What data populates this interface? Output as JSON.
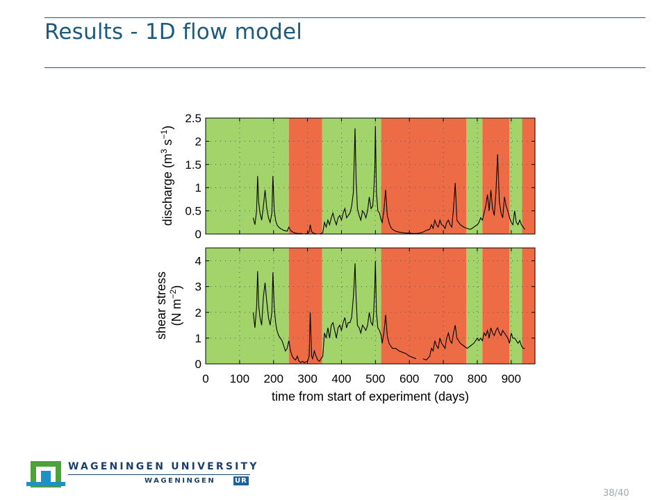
{
  "slide": {
    "title": "Results - 1D flow model",
    "page_current": "38",
    "page_total": "40"
  },
  "logo": {
    "university": "WAGENINGEN UNIVERSITY",
    "ur_prefix": "WAGENINGEN",
    "ur_suffix": "UR"
  },
  "colors": {
    "green": "#a3d36b",
    "red": "#ed6c45",
    "title": "#1b5a7d",
    "rule": "#1f5a7a"
  },
  "chart_data": {
    "type": "line",
    "xlabel": "time from start of experiment (days)",
    "xlim": [
      0,
      970
    ],
    "xticks": [
      0,
      100,
      200,
      300,
      400,
      500,
      600,
      700,
      800,
      900
    ],
    "grid": "dotted",
    "shaded_periods": [
      {
        "start": 0,
        "end": 245,
        "state": "green"
      },
      {
        "start": 245,
        "end": 343,
        "state": "red"
      },
      {
        "start": 343,
        "end": 517,
        "state": "green"
      },
      {
        "start": 517,
        "end": 768,
        "state": "red"
      },
      {
        "start": 768,
        "end": 815,
        "state": "green"
      },
      {
        "start": 815,
        "end": 895,
        "state": "red"
      },
      {
        "start": 895,
        "end": 932,
        "state": "green"
      },
      {
        "start": 932,
        "end": 970,
        "state": "red"
      }
    ],
    "panels": [
      {
        "name": "discharge",
        "ylabel_line1": "discharge (m",
        "ylabel_sup1": "3",
        "ylabel_mid": " s",
        "ylabel_sup2": "−1",
        "ylabel_end": ")",
        "ylim": [
          0,
          2.5
        ],
        "yticks": [
          "0",
          "0.5",
          "1",
          "1.5",
          "2",
          "2.5"
        ],
        "ytick_values": [
          0,
          0.5,
          1,
          1.5,
          2,
          2.5
        ],
        "series": [
          {
            "x": [
              140,
              145,
              150,
              153,
              156,
              160,
              165,
              170,
              175,
              180,
              185,
              190,
              195,
              198,
              202,
              206,
              210,
              215,
              220,
              225,
              230,
              235,
              240,
              245,
              250,
              255,
              260,
              265,
              270,
              280,
              290,
              300,
              305,
              308,
              312,
              320,
              330,
              335,
              340,
              345,
              350,
              355,
              360,
              365,
              370,
              375,
              380,
              385,
              390,
              395,
              400,
              405,
              410,
              415,
              420,
              425,
              430,
              435,
              437,
              440,
              443,
              447,
              452,
              457,
              462,
              467,
              472,
              477,
              482,
              487,
              492,
              495,
              498,
              500,
              503,
              507,
              512,
              517,
              520,
              525,
              530,
              535,
              540,
              545,
              550,
              560,
              570,
              580,
              590,
              600,
              610,
              620,
              630,
              640,
              650,
              660,
              665,
              670,
              675,
              680,
              685,
              690,
              695,
              700,
              705,
              710,
              715,
              720,
              725,
              730,
              735,
              740,
              750,
              760,
              770,
              780,
              790,
              800,
              805,
              810,
              815,
              820,
              825,
              830,
              835,
              840,
              845,
              850,
              855,
              860,
              865,
              870,
              875,
              880,
              885,
              890,
              895,
              900,
              905,
              910,
              915,
              920,
              925,
              930,
              935,
              940
            ],
            "y": [
              0.35,
              0.2,
              0.5,
              1.25,
              0.7,
              0.45,
              0.3,
              0.6,
              0.95,
              0.55,
              0.35,
              0.25,
              0.45,
              1.25,
              0.5,
              0.3,
              0.2,
              0.15,
              0.12,
              0.1,
              0.08,
              0.07,
              0.06,
              0.15,
              0.08,
              0.05,
              0.03,
              0.02,
              0.01,
              0.01,
              0.0,
              0.01,
              0.05,
              0.2,
              0.05,
              0.01,
              0.0,
              0.0,
              0.01,
              0.03,
              0.25,
              0.15,
              0.3,
              0.2,
              0.35,
              0.45,
              0.3,
              0.2,
              0.35,
              0.4,
              0.3,
              0.45,
              0.55,
              0.35,
              0.4,
              0.45,
              0.6,
              0.9,
              1.4,
              2.28,
              1.2,
              0.55,
              0.4,
              0.3,
              0.5,
              0.45,
              0.35,
              0.5,
              0.8,
              0.55,
              0.6,
              0.9,
              1.4,
              2.33,
              0.9,
              0.5,
              0.45,
              0.3,
              0.25,
              0.5,
              0.95,
              0.4,
              0.25,
              0.15,
              0.1,
              0.06,
              0.04,
              0.03,
              0.02,
              0.02,
              0.01,
              0.01,
              0.02,
              0.04,
              0.08,
              0.1,
              0.2,
              0.12,
              0.3,
              0.2,
              0.15,
              0.3,
              0.2,
              0.18,
              0.12,
              0.25,
              0.3,
              0.2,
              0.15,
              0.55,
              1.1,
              0.3,
              0.2,
              0.15,
              0.12,
              0.1,
              0.15,
              0.2,
              0.25,
              0.35,
              0.3,
              0.45,
              0.6,
              0.85,
              0.5,
              0.95,
              0.55,
              0.4,
              0.9,
              1.72,
              0.7,
              0.45,
              0.35,
              0.8,
              0.6,
              0.5,
              0.35,
              0.25,
              0.2,
              0.5,
              0.25,
              0.2,
              0.3,
              0.2,
              0.15,
              0.1
            ]
          }
        ]
      },
      {
        "name": "shear stress",
        "ylabel_line1": "shear stress",
        "ylabel_line2a": "(N m",
        "ylabel_sup": "−2",
        "ylabel_line2b": ")",
        "ylim": [
          0,
          4.5
        ],
        "yticks": [
          "0",
          "1",
          "2",
          "3",
          "4"
        ],
        "ytick_values": [
          0,
          1,
          2,
          3,
          4
        ],
        "series": [
          {
            "x": [
              140,
              145,
              150,
              153,
              156,
              160,
              165,
              170,
              175,
              180,
              185,
              190,
              195,
              198,
              202,
              206,
              210,
              215,
              220,
              225,
              230,
              235,
              240,
              245,
              250,
              255,
              260,
              265,
              270,
              275,
              280,
              285,
              290,
              300,
              305,
              308,
              312,
              315,
              320,
              325,
              330,
              335,
              340,
              345,
              350,
              355,
              360,
              365,
              370,
              375,
              380,
              385,
              390,
              395,
              400,
              405,
              410,
              415,
              420,
              425,
              430,
              435,
              437,
              440,
              443,
              447,
              452,
              457,
              462,
              467,
              472,
              477,
              482,
              487,
              492,
              495,
              498,
              500,
              503,
              507,
              512,
              517,
              520,
              525,
              530,
              535,
              540,
              545,
              550,
              560,
              570,
              580,
              590,
              600,
              610,
              620,
              630,
              640,
              650,
              660,
              665,
              670,
              675,
              680,
              685,
              690,
              695,
              700,
              705,
              710,
              715,
              720,
              725,
              730,
              735,
              740,
              750,
              760,
              770,
              780,
              790,
              800,
              805,
              810,
              815,
              820,
              825,
              830,
              835,
              840,
              845,
              850,
              855,
              860,
              865,
              870,
              875,
              880,
              885,
              890,
              895,
              900,
              905,
              910,
              915,
              920,
              925,
              930,
              935,
              940
            ],
            "y": [
              2.0,
              1.4,
              2.2,
              3.6,
              2.3,
              1.8,
              1.5,
              2.6,
              3.15,
              2.4,
              1.8,
              1.5,
              2.0,
              3.55,
              2.2,
              1.6,
              1.3,
              1.1,
              1.0,
              0.9,
              0.7,
              0.5,
              0.6,
              0.9,
              0.5,
              0.3,
              0.2,
              0.15,
              0.3,
              0.1,
              0.05,
              0.1,
              0.05,
              0.1,
              0.3,
              2.0,
              0.3,
              0.2,
              0.5,
              0.3,
              0.15,
              0.1,
              0.2,
              0.3,
              1.2,
              1.0,
              1.4,
              1.0,
              1.5,
              1.6,
              1.3,
              1.0,
              1.4,
              1.5,
              1.3,
              1.6,
              1.8,
              1.4,
              1.6,
              1.6,
              1.8,
              2.6,
              3.0,
              3.9,
              2.6,
              1.5,
              1.4,
              1.2,
              1.5,
              1.4,
              1.3,
              1.5,
              2.0,
              1.6,
              1.5,
              2.0,
              3.0,
              4.0,
              2.0,
              1.4,
              1.3,
              1.1,
              0.8,
              1.2,
              1.9,
              1.1,
              0.8,
              0.7,
              0.6,
              0.6,
              0.5,
              0.45,
              0.4,
              0.3,
              0.25,
              0.2,
              null,
              0.2,
              0.15,
              0.3,
              0.6,
              0.5,
              0.9,
              0.7,
              0.6,
              1.0,
              0.8,
              0.7,
              0.6,
              1.0,
              1.2,
              0.9,
              0.8,
              1.2,
              1.5,
              1.0,
              0.8,
              0.7,
              0.6,
              0.7,
              0.8,
              1.0,
              0.9,
              1.0,
              0.9,
              1.2,
              1.1,
              1.3,
              1.0,
              1.4,
              1.2,
              1.1,
              1.3,
              1.4,
              1.2,
              1.1,
              1.3,
              1.2,
              1.1,
              1.0,
              0.8,
              1.2,
              1.0,
              1.0,
              0.9,
              0.8,
              0.9,
              0.7,
              0.6,
              0.6
            ]
          }
        ]
      }
    ]
  }
}
